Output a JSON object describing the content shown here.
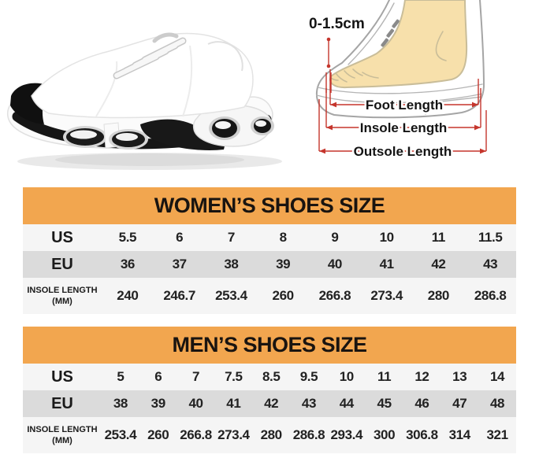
{
  "colors": {
    "header_bg": "#F2A64F",
    "row_light": "#F5F5F5",
    "row_mid": "#DBDBDB",
    "accent_red": "#C5352C",
    "foot_fill": "#F7E0AB",
    "foot_stroke": "#C9BD99",
    "line_gray": "#A5A5A5",
    "ink": "#1C1C1C"
  },
  "hero": {
    "shoe_image": "white-sneaker-black-accents-side-view",
    "diagram": {
      "gap_label": "0-1.5cm",
      "labels": {
        "foot": "Foot Length",
        "insole": "Insole Length",
        "outsole": "Outsole Length"
      }
    }
  },
  "chart_data": [
    {
      "type": "table",
      "title": "WOMEN’S SHOES SIZE",
      "rows": [
        {
          "label": "US",
          "values": [
            "5.5",
            "6",
            "7",
            "8",
            "9",
            "10",
            "11",
            "11.5"
          ]
        },
        {
          "label": "EU",
          "values": [
            "36",
            "37",
            "38",
            "39",
            "40",
            "41",
            "42",
            "43"
          ]
        },
        {
          "label": "INSOLE LENGTH (MM)",
          "values": [
            "240",
            "246.7",
            "253.4",
            "260",
            "266.8",
            "273.4",
            "280",
            "286.8"
          ]
        }
      ]
    },
    {
      "type": "table",
      "title": "MEN’S SHOES SIZE",
      "rows": [
        {
          "label": "US",
          "values": [
            "5",
            "6",
            "7",
            "7.5",
            "8.5",
            "9.5",
            "10",
            "11",
            "12",
            "13",
            "14"
          ]
        },
        {
          "label": "EU",
          "values": [
            "38",
            "39",
            "40",
            "41",
            "42",
            "43",
            "44",
            "45",
            "46",
            "47",
            "48"
          ]
        },
        {
          "label": "INSOLE LENGTH (MM)",
          "values": [
            "253.4",
            "260",
            "266.8",
            "273.4",
            "280",
            "286.8",
            "293.4",
            "300",
            "306.8",
            "314",
            "321"
          ]
        }
      ]
    }
  ]
}
